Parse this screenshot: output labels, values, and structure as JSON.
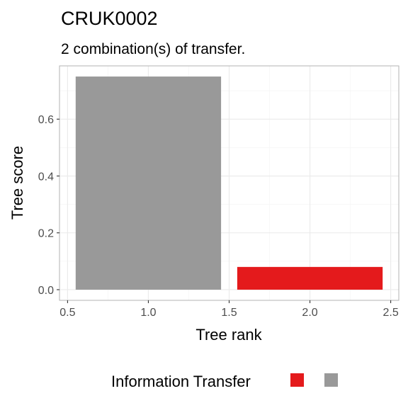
{
  "chart_data": {
    "type": "bar",
    "title": "CRUK0002",
    "subtitle": "2 combination(s) of transfer.",
    "xlabel": "Tree rank",
    "ylabel": "Tree score",
    "x_ticks": [
      "0.5",
      "1.0",
      "1.5",
      "2.0",
      "2.5"
    ],
    "y_ticks": [
      "0.0",
      "0.2",
      "0.4",
      "0.6"
    ],
    "xlim": [
      0.45,
      2.55
    ],
    "ylim": [
      -0.0375,
      0.7875
    ],
    "grid": true,
    "bars": [
      {
        "x": 1,
        "value": 0.75,
        "color": "#999999"
      },
      {
        "x": 2,
        "value": 0.08,
        "color": "#e41a1c"
      }
    ],
    "legend": {
      "title": "Information Transfer",
      "position": "bottom",
      "keys": [
        {
          "label": "",
          "color": "#e41a1c"
        },
        {
          "label": "",
          "color": "#999999"
        }
      ]
    },
    "colors": {
      "panel_border": "#b3b3b3",
      "grid_major": "#ebebeb",
      "grid_minor": "#f5f5f5"
    }
  }
}
